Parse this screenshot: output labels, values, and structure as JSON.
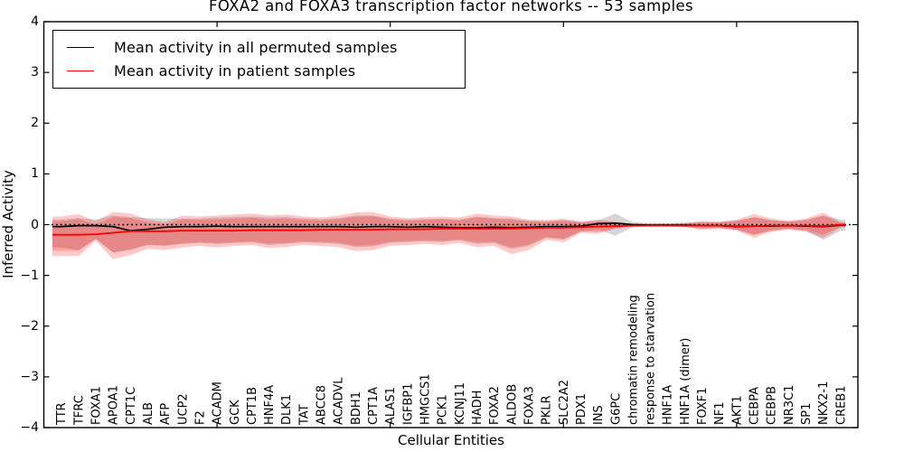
{
  "figure": {
    "title": "FOXA2 and FOXA3 transcription factor networks -- 53 samples",
    "background": "#ffffff"
  },
  "legend": {
    "entries": [
      {
        "label": "Mean activity in all permuted samples",
        "color": "#000000"
      },
      {
        "label": "Mean activity in patient samples",
        "color": "#ff0000"
      }
    ]
  },
  "axes": {
    "xlabel": "Cellular Entities",
    "ylabel": "Inferred Activity",
    "y_tick_labels": [
      "4",
      "3",
      "2",
      "1",
      "0",
      "−1",
      "−2",
      "−3",
      "−4"
    ],
    "y_tick_values": [
      4,
      3,
      2,
      1,
      0,
      -1,
      -2,
      -3,
      -4
    ],
    "ylim": [
      -4,
      4
    ],
    "x_major_tick_positions": [
      10,
      20,
      30,
      40
    ]
  },
  "chart_data": {
    "type": "line",
    "title": "FOXA2 and FOXA3 transcription factor networks -- 53 samples",
    "xlabel": "Cellular Entities",
    "ylabel": "Inferred Activity",
    "ylim": [
      -4,
      4
    ],
    "grid": false,
    "legend_position": "upper left",
    "categories": [
      "TTR",
      "TFRC",
      "FOXA1",
      "APOA1",
      "CPT1C",
      "ALB",
      "AFP",
      "UCP2",
      "F2",
      "ACADM",
      "GCK",
      "CPT1B",
      "HNF4A",
      "DLK1",
      "TAT",
      "ABCC8",
      "ACADVL",
      "BDH1",
      "CPT1A",
      "ALAS1",
      "IGFBP1",
      "HMGCS1",
      "PCK1",
      "KCNJ11",
      "HADH",
      "FOXA2",
      "ALDOB",
      "FOXA3",
      "PKLR",
      "SLC2A2",
      "PDX1",
      "INS",
      "G6PC",
      "chromatin remodeling",
      "response to starvation",
      "HNF1A",
      "HNF1A (dimer)",
      "FOXF1",
      "NF1",
      "AKT1",
      "CEBPA",
      "CEBPB",
      "NR3C1",
      "SP1",
      "NKX2-1",
      "CREB1"
    ],
    "series": [
      {
        "name": "Mean activity in all permuted samples",
        "color": "#000000",
        "style": "solid",
        "values": [
          -0.04,
          -0.02,
          -0.02,
          -0.04,
          -0.12,
          -0.09,
          -0.05,
          -0.04,
          -0.04,
          -0.03,
          -0.04,
          -0.04,
          -0.04,
          -0.04,
          -0.04,
          -0.04,
          -0.04,
          -0.05,
          -0.04,
          -0.04,
          -0.05,
          -0.04,
          -0.05,
          -0.06,
          -0.06,
          -0.05,
          -0.06,
          -0.05,
          -0.04,
          -0.04,
          -0.03,
          0.02,
          0.03,
          0.0,
          -0.01,
          -0.01,
          -0.01,
          -0.02,
          -0.02,
          -0.04,
          -0.03,
          -0.03,
          -0.02,
          -0.03,
          -0.04,
          -0.01
        ]
      },
      {
        "name": "Mean activity in patient samples",
        "color": "#ff0000",
        "style": "solid",
        "values": [
          -0.2,
          -0.2,
          -0.19,
          -0.16,
          -0.13,
          -0.13,
          -0.13,
          -0.12,
          -0.12,
          -0.12,
          -0.12,
          -0.11,
          -0.11,
          -0.11,
          -0.11,
          -0.1,
          -0.1,
          -0.1,
          -0.1,
          -0.09,
          -0.09,
          -0.09,
          -0.08,
          -0.08,
          -0.08,
          -0.08,
          -0.08,
          -0.07,
          -0.06,
          -0.06,
          -0.05,
          -0.04,
          -0.03,
          -0.02,
          -0.02,
          -0.02,
          -0.02,
          -0.02,
          -0.02,
          -0.03,
          -0.03,
          -0.02,
          -0.02,
          -0.02,
          -0.03,
          0.0
        ]
      }
    ],
    "reference_line": {
      "value": 0,
      "style": "dotted",
      "color": "#000000"
    },
    "bands": [
      {
        "name": "permuted samples range",
        "color": "rgba(120,120,120,0.30)",
        "top": [
          0.1,
          0.13,
          0.1,
          0.18,
          0.15,
          0.13,
          0.12,
          0.12,
          0.12,
          0.14,
          0.15,
          0.16,
          0.14,
          0.15,
          0.12,
          0.11,
          0.13,
          0.18,
          0.18,
          0.12,
          0.1,
          0.11,
          0.12,
          0.1,
          0.16,
          0.13,
          0.12,
          0.08,
          0.07,
          0.09,
          0.05,
          0.08,
          0.22,
          0.05,
          0.03,
          0.03,
          0.04,
          0.05,
          0.05,
          0.08,
          0.14,
          0.09,
          0.06,
          0.1,
          0.18,
          0.1
        ],
        "bottom": [
          -0.45,
          -0.5,
          -0.28,
          -0.55,
          -0.5,
          -0.4,
          -0.42,
          -0.38,
          -0.36,
          -0.38,
          -0.36,
          -0.35,
          -0.4,
          -0.38,
          -0.35,
          -0.36,
          -0.38,
          -0.44,
          -0.43,
          -0.36,
          -0.34,
          -0.33,
          -0.34,
          -0.31,
          -0.38,
          -0.36,
          -0.48,
          -0.42,
          -0.26,
          -0.3,
          -0.14,
          -0.1,
          -0.22,
          -0.05,
          -0.03,
          -0.03,
          -0.04,
          -0.06,
          -0.06,
          -0.1,
          -0.2,
          -0.12,
          -0.08,
          -0.12,
          -0.3,
          -0.12
        ]
      },
      {
        "name": "patient samples range",
        "color": "rgba(255,30,30,0.24)",
        "top": [
          0.16,
          0.21,
          0.07,
          0.25,
          0.22,
          0.1,
          0.05,
          0.18,
          0.16,
          0.18,
          0.2,
          0.22,
          0.18,
          0.2,
          0.16,
          0.14,
          0.18,
          0.24,
          0.25,
          0.16,
          0.13,
          0.15,
          0.16,
          0.14,
          0.22,
          0.18,
          0.16,
          0.1,
          0.09,
          0.12,
          0.07,
          0.1,
          0.06,
          0.02,
          0.02,
          0.02,
          0.03,
          0.07,
          0.06,
          0.1,
          0.21,
          0.12,
          0.08,
          0.12,
          0.24,
          0.05
        ],
        "bottom": [
          -0.62,
          -0.62,
          -0.32,
          -0.68,
          -0.6,
          -0.48,
          -0.5,
          -0.45,
          -0.42,
          -0.45,
          -0.42,
          -0.4,
          -0.46,
          -0.44,
          -0.4,
          -0.42,
          -0.44,
          -0.52,
          -0.5,
          -0.42,
          -0.4,
          -0.38,
          -0.4,
          -0.36,
          -0.44,
          -0.42,
          -0.58,
          -0.5,
          -0.3,
          -0.35,
          -0.16,
          -0.18,
          -0.08,
          -0.04,
          -0.04,
          -0.04,
          -0.05,
          -0.1,
          -0.08,
          -0.12,
          -0.26,
          -0.14,
          -0.1,
          -0.14,
          -0.26,
          -0.06
        ]
      }
    ]
  }
}
